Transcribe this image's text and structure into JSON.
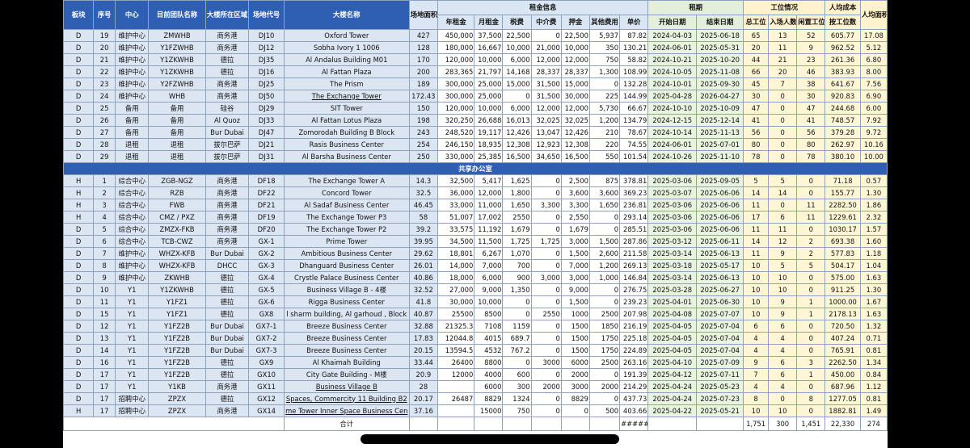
{
  "table": {
    "header": {
      "left": [
        "板块",
        "序号",
        "中心",
        "目前团队名称",
        "大楼所在区域",
        "场地代号",
        "大楼名称",
        "场地面积"
      ],
      "rent": {
        "title": "租金信息",
        "columns": [
          "年租金",
          "月租金",
          "税费",
          "中介费",
          "押金",
          "其他费用",
          "单价"
        ]
      },
      "term": {
        "title": "租期",
        "columns": [
          "开始日期",
          "结束日期"
        ]
      },
      "seats": {
        "title": "工位情况",
        "columns": [
          "总工位",
          "入场人数",
          "闲置工位"
        ]
      },
      "cost": {
        "title": "人均成本",
        "columns": [
          "按工位数"
        ]
      },
      "area": "人均面积"
    },
    "sections": [
      {
        "rows": [
          [
            "D",
            "19",
            "维护中心",
            "ZMWHB",
            "商务港",
            "DJ10",
            "Oxford Tower",
            "427",
            "450,000",
            "37,500",
            "22,500",
            "0",
            "22,500",
            "5,937",
            "87.82",
            "2024-04-03",
            "2025-06-18",
            "65",
            "13",
            "52",
            "605.77",
            "17.08"
          ],
          [
            "D",
            "20",
            "维护中心",
            "Y1FZWHB",
            "商务港",
            "DJ12",
            "Sobha Ivory 1 1006",
            "128",
            "180,000",
            "16,667",
            "10,000",
            "21,000",
            "10,000",
            "350",
            "130.21",
            "2024-06-01",
            "2025-05-31",
            "20",
            "11",
            "9",
            "962.52",
            "5.12"
          ],
          [
            "D",
            "21",
            "维护中心",
            "Y1ZKWHB",
            "德拉",
            "DJ35",
            "Al Andalus Building M01",
            "170",
            "120,000",
            "10,000",
            "6,000",
            "12,000",
            "12,000",
            "750",
            "58.82",
            "2024-10-21",
            "2025-10-20",
            "44",
            "21",
            "23",
            "261.36",
            "6.80"
          ],
          [
            "D",
            "22",
            "维护中心",
            "Y1ZKWHB",
            "德拉",
            "DJ16",
            "Al Fattan Plaza",
            "200",
            "283,365",
            "21,797",
            "14,168",
            "28,337",
            "28,337",
            "1,300",
            "108.99",
            "2024-10-05",
            "2025-11-08",
            "66",
            "20",
            "46",
            "383.93",
            "8.00"
          ],
          [
            "D",
            "23",
            "维护中心",
            "Y2FZWHB",
            "商务港",
            "DJ25",
            "The Prism",
            "189",
            "300,000",
            "25,000",
            "15,000",
            "31,500",
            "15,000",
            "0",
            "132.28",
            "2024-10-01",
            "2025-09-30",
            "45",
            "7",
            "38",
            "641.67",
            "7.56"
          ],
          [
            "D",
            "24",
            "维护中心",
            "WHB",
            "商务港",
            "DJ50",
            "The Exchange Tower",
            "172.43",
            "300,000",
            "25,000",
            "0",
            "31,500",
            "30,000",
            "225",
            "144.99",
            "2025-04-28",
            "2026-04-27",
            "30",
            "0",
            "30",
            "920.83",
            "6.90"
          ],
          [
            "D",
            "25",
            "备用",
            "备用",
            "硅谷",
            "DJ29",
            "SIT Tower",
            "150",
            "120,000",
            "10,000",
            "6,000",
            "12,000",
            "12,000",
            "5,730",
            "66.67",
            "2024-10-10",
            "2025-10-09",
            "47",
            "0",
            "47",
            "244.68",
            "6.00"
          ],
          [
            "D",
            "26",
            "备用",
            "备用",
            "Al Quoz",
            "DJ33",
            "Al Fattan Lotus Plaza",
            "198",
            "320,250",
            "26,688",
            "16,013",
            "32,025",
            "32,025",
            "1,200",
            "134.79",
            "2024-12-15",
            "2025-12-14",
            "41",
            "0",
            "41",
            "748.57",
            "7.92"
          ],
          [
            "D",
            "27",
            "备用",
            "备用",
            "Bur Dubai",
            "DJ47",
            "Zomorodah Building B Block",
            "243",
            "248,520",
            "19,117",
            "12,426",
            "13,047",
            "12,426",
            "210",
            "78.67",
            "2024-10-14",
            "2025-11-13",
            "56",
            "0",
            "56",
            "379.28",
            "9.72"
          ],
          [
            "D",
            "28",
            "退租",
            "退租",
            "拔尔巴萨",
            "DJ21",
            "Rasis Business Center",
            "254",
            "246,150",
            "18,935",
            "12,308",
            "12,923",
            "12,308",
            "220",
            "74.55",
            "2024-06-01",
            "2025-07-01",
            "80",
            "0",
            "80",
            "262.97",
            "10.16"
          ],
          [
            "D",
            "29",
            "退租",
            "退租",
            "拔尔巴萨",
            "DJ31",
            "Al Barsha Business Center",
            "250",
            "330,000",
            "25,385",
            "16,500",
            "34,650",
            "16,500",
            "550",
            "101.54",
            "2024-10-26",
            "2025-11-10",
            "78",
            "0",
            "78",
            "380.10",
            "10.00"
          ]
        ]
      },
      {
        "title": "共享办公室",
        "rows": [
          [
            "H",
            "1",
            "综合中心",
            "ZGB-NGZ",
            "商务港",
            "DF18",
            "The Exchange Tower A",
            "14.3",
            "32,500",
            "5,417",
            "1,625",
            "0",
            "2,500",
            "875",
            "378.81",
            "2025-03-06",
            "2025-09-05",
            "5",
            "5",
            "0",
            "71.18",
            "0.57"
          ],
          [
            "H",
            "2",
            "综合中心",
            "RZB",
            "商务港",
            "DF22",
            "Concord Tower",
            "32.5",
            "36,000",
            "12,000",
            "1,800",
            "0",
            "3,600",
            "3,600",
            "369.23",
            "2025-03-07",
            "2025-06-06",
            "14",
            "14",
            "0",
            "155.77",
            "1.30"
          ],
          [
            "H",
            "3",
            "综合中心",
            "FWB",
            "商务港",
            "DF21",
            "Al Sadaf Business Center",
            "46.45",
            "33,000",
            "11,000",
            "1,650",
            "3,300",
            "3,300",
            "1,650",
            "236.81",
            "2025-03-06",
            "2025-06-06",
            "11",
            "0",
            "11",
            "2282.50",
            "1.86"
          ],
          [
            "H",
            "4",
            "综合中心",
            "CMZ / PXZ",
            "商务港",
            "DF19",
            "The Exchange Tower P3",
            "58",
            "51,007",
            "17,002",
            "2550",
            "0",
            "2,550",
            "0",
            "293.14",
            "2025-03-06",
            "2025-06-06",
            "17",
            "6",
            "11",
            "1229.61",
            "2.32"
          ],
          [
            "D",
            "5",
            "综合中心",
            "ZMZX-FKB",
            "商务港",
            "DF20",
            "The Exchange Tower P2",
            "39.2",
            "33,575",
            "11,192",
            "1,679",
            "0",
            "1,679",
            "0",
            "285.51",
            "2025-03-06",
            "2025-06-06",
            "11",
            "11",
            "0",
            "1030.17",
            "1.57"
          ],
          [
            "D",
            "6",
            "综合中心",
            "TCB-CWZ",
            "商务港",
            "GX-1",
            "Prime Tower",
            "39.95",
            "34,500",
            "11,500",
            "1,725",
            "1,725",
            "3,000",
            "1,500",
            "287.86",
            "2025-03-12",
            "2025-06-11",
            "14",
            "12",
            "2",
            "693.38",
            "1.60"
          ],
          [
            "D",
            "7",
            "维护中心",
            "WHZX-KFB",
            "Bur Dubai",
            "GX-2",
            "Ambitious Business Center",
            "29.62",
            "18,801",
            "6,267",
            "1,070",
            "0",
            "1,500",
            "2,600",
            "211.58",
            "2025-03-14",
            "2025-06-13",
            "11",
            "9",
            "2",
            "577.83",
            "1.18"
          ],
          [
            "D",
            "8",
            "维护中心",
            "WHZX-KFB",
            "DHCC",
            "GX-3",
            "Dhanguard Business Center",
            "26.01",
            "14,000",
            "7,000",
            "700",
            "0",
            "7,000",
            "1,200",
            "269.13",
            "2025-03-18",
            "2025-05-17",
            "10",
            "5",
            "5",
            "504.17",
            "1.04"
          ],
          [
            "D",
            "9",
            "维护中心",
            "ZKWHB",
            "德拉",
            "GX-4",
            "Crystle Palace Business Center",
            "40.86",
            "18,000",
            "6,000",
            "900",
            "3,000",
            "3,000",
            "1,000",
            "146.84",
            "2025-03-14",
            "2025-06-13",
            "10",
            "10",
            "0",
            "575.00",
            "1.63"
          ],
          [
            "D",
            "10",
            "Y1",
            "Y1ZKWHB",
            "德拉",
            "GX-5",
            "Business Village B - 4楼",
            "32.52",
            "27,000",
            "9,000",
            "1,350",
            "0",
            "9,000",
            "0",
            "276.75",
            "2025-03-28",
            "2025-06-27",
            "10",
            "10",
            "0",
            "911.25",
            "1.30"
          ],
          [
            "D",
            "11",
            "Y1",
            "Y1FZ1",
            "德拉",
            "GX-6",
            "Rigga Business Center",
            "41.8",
            "30,000",
            "10,000",
            "0",
            "0",
            "1,500",
            "0",
            "239.23",
            "2025-04-01",
            "2025-06-30",
            "10",
            "9",
            "1",
            "1000.00",
            "1.67"
          ],
          [
            "D",
            "15",
            "Y1",
            "Y1FZ1",
            "德拉",
            "GX8",
            "l sharm building, Al garhoud , Block",
            "40.87",
            "25500",
            "8500",
            "0",
            "2550",
            "1000",
            "2500",
            "207.98",
            "2025-04-08",
            "2025-07-07",
            "10",
            "9",
            "1",
            "2178.13",
            "1.63"
          ],
          [
            "D",
            "12",
            "Y1",
            "Y1FZ2B",
            "Bur Dubai",
            "GX7-1",
            "Breeze Business Center",
            "32.88",
            "21325.3",
            "7108",
            "1159",
            "0",
            "1500",
            "1850",
            "216.19",
            "2025-04-05",
            "2025-07-04",
            "6",
            "6",
            "0",
            "720.50",
            "1.32"
          ],
          [
            "D",
            "13",
            "Y1",
            "Y1FZ2B",
            "Bur Dubai",
            "GX7-2",
            "Breeze Business Center",
            "17.83",
            "12044.8",
            "4015",
            "689.7",
            "0",
            "1500",
            "1750",
            "225.18",
            "2025-04-05",
            "2025-07-04",
            "4",
            "4",
            "0",
            "407.24",
            "0.71"
          ],
          [
            "D",
            "14",
            "Y1",
            "Y1FZ2B",
            "Bur Dubai",
            "GX7-3",
            "Breeze Business Center",
            "20.15",
            "13594.5",
            "4532",
            "767.2",
            "0",
            "1500",
            "1750",
            "224.89",
            "2025-04-05",
            "2025-07-04",
            "4",
            "4",
            "0",
            "765.91",
            "0.81"
          ],
          [
            "D",
            "16",
            "Y1",
            "Y1FZ2B",
            "德拉",
            "GX9",
            "Al Khaimah Building",
            "33.44",
            "26400",
            "8800",
            "0",
            "3000",
            "6000",
            "2500",
            "263.16",
            "2025-04-10",
            "2025-07-09",
            "9",
            "6",
            "3",
            "2262.50",
            "1.34"
          ],
          [
            "D",
            "17",
            "Y1",
            "Y1FZ2B",
            "德拉",
            "GX10",
            "City Gate Building - M楼",
            "20.9",
            "12000",
            "4000",
            "600",
            "0",
            "2000",
            "0",
            "191.39",
            "2025-04-12",
            "2025-07-11",
            "7",
            "6",
            "1",
            "450.00",
            "0.84"
          ],
          [
            "D",
            "17",
            "Y1",
            "Y1KB",
            "商务港",
            "GX11",
            "Business Village B",
            "28",
            null,
            "6000",
            "300",
            "2000",
            "3000",
            "2000",
            "214.29",
            "2025-04-24",
            "2025-05-23",
            "4",
            "4",
            "0",
            "687.96",
            "1.12"
          ],
          [
            "D",
            "17",
            "招聘中心",
            "ZPZX",
            "德拉",
            "GX12",
            "Spaces, Commercity 11 Building B2",
            "20.17",
            "26487",
            "8829",
            "1324",
            "0",
            "8829",
            "0",
            "437.73",
            "2025-04-24",
            "2025-07-23",
            "8",
            "0",
            "8",
            "1277.05",
            "0.81"
          ],
          [
            "H",
            "17",
            "招聘中心",
            "ZPZX",
            "商务港",
            "GX14",
            "me Tower Inner Space Business Cen",
            "37.16",
            null,
            "15000",
            "750",
            "0",
            "0",
            "500",
            "403.66",
            "2025-04-22",
            "2025-05-21",
            "10",
            "10",
            "0",
            "1882.81",
            "1.49"
          ]
        ]
      }
    ],
    "total": {
      "label": "合计",
      "cells": [
        null,
        null,
        null,
        null,
        null,
        null,
        null,
        null,
        null,
        null,
        null,
        null,
        null,
        null,
        "#####",
        null,
        null,
        "1,751",
        "300",
        "1,451",
        "22,330",
        "274"
      ]
    }
  }
}
